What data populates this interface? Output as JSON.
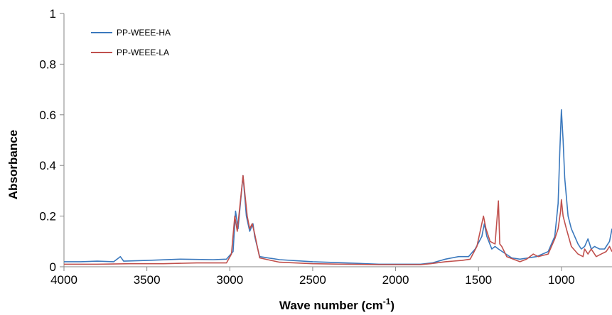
{
  "chart_data": {
    "type": "line",
    "xlabel": "Wave number (cm",
    "xlabel_sup": "-1",
    "xlabel_suffix": ")",
    "ylabel": "Absorbance",
    "x_reversed": true,
    "xlim": [
      4000,
      695
    ],
    "ylim": [
      0,
      1
    ],
    "x_ticks": [
      4000,
      3500,
      3000,
      2500,
      2000,
      1500,
      1000
    ],
    "y_ticks": [
      {
        "value": 0,
        "label": "0"
      },
      {
        "value": 0.2,
        "label": "0.2"
      },
      {
        "value": 0.4,
        "label": "0.4"
      },
      {
        "value": 0.6,
        "label": "0.6"
      },
      {
        "value": 0.8,
        "label": "0.8"
      },
      {
        "value": 1,
        "label": "1"
      }
    ],
    "grid": false,
    "legend_position": "top-left",
    "series": [
      {
        "name": "PP-WEEE-HA",
        "color": "#3a78bd",
        "points": [
          [
            4000,
            0.02
          ],
          [
            3900,
            0.02
          ],
          [
            3800,
            0.022
          ],
          [
            3700,
            0.02
          ],
          [
            3660,
            0.04
          ],
          [
            3640,
            0.022
          ],
          [
            3500,
            0.025
          ],
          [
            3300,
            0.03
          ],
          [
            3100,
            0.028
          ],
          [
            3020,
            0.03
          ],
          [
            2980,
            0.06
          ],
          [
            2965,
            0.22
          ],
          [
            2950,
            0.15
          ],
          [
            2920,
            0.36
          ],
          [
            2900,
            0.2
          ],
          [
            2880,
            0.14
          ],
          [
            2860,
            0.17
          ],
          [
            2850,
            0.12
          ],
          [
            2820,
            0.04
          ],
          [
            2700,
            0.028
          ],
          [
            2500,
            0.02
          ],
          [
            2300,
            0.015
          ],
          [
            2100,
            0.01
          ],
          [
            1850,
            0.01
          ],
          [
            1780,
            0.015
          ],
          [
            1700,
            0.03
          ],
          [
            1620,
            0.04
          ],
          [
            1560,
            0.04
          ],
          [
            1520,
            0.07
          ],
          [
            1480,
            0.12
          ],
          [
            1465,
            0.17
          ],
          [
            1450,
            0.12
          ],
          [
            1420,
            0.07
          ],
          [
            1400,
            0.08
          ],
          [
            1380,
            0.07
          ],
          [
            1300,
            0.035
          ],
          [
            1250,
            0.03
          ],
          [
            1200,
            0.035
          ],
          [
            1150,
            0.04
          ],
          [
            1080,
            0.06
          ],
          [
            1040,
            0.12
          ],
          [
            1020,
            0.25
          ],
          [
            1010,
            0.45
          ],
          [
            1000,
            0.62
          ],
          [
            990,
            0.5
          ],
          [
            980,
            0.35
          ],
          [
            960,
            0.2
          ],
          [
            940,
            0.15
          ],
          [
            900,
            0.09
          ],
          [
            880,
            0.07
          ],
          [
            860,
            0.08
          ],
          [
            840,
            0.11
          ],
          [
            820,
            0.07
          ],
          [
            800,
            0.08
          ],
          [
            770,
            0.07
          ],
          [
            740,
            0.07
          ],
          [
            710,
            0.1
          ],
          [
            695,
            0.15
          ]
        ]
      },
      {
        "name": "PP-WEEE-LA",
        "color": "#c0504d",
        "points": [
          [
            4000,
            0.01
          ],
          [
            3800,
            0.01
          ],
          [
            3600,
            0.012
          ],
          [
            3400,
            0.012
          ],
          [
            3200,
            0.015
          ],
          [
            3020,
            0.015
          ],
          [
            2990,
            0.05
          ],
          [
            2970,
            0.2
          ],
          [
            2955,
            0.14
          ],
          [
            2920,
            0.36
          ],
          [
            2895,
            0.2
          ],
          [
            2880,
            0.15
          ],
          [
            2865,
            0.17
          ],
          [
            2850,
            0.13
          ],
          [
            2820,
            0.035
          ],
          [
            2700,
            0.018
          ],
          [
            2500,
            0.012
          ],
          [
            2300,
            0.01
          ],
          [
            2100,
            0.008
          ],
          [
            1850,
            0.008
          ],
          [
            1790,
            0.012
          ],
          [
            1700,
            0.02
          ],
          [
            1600,
            0.025
          ],
          [
            1550,
            0.03
          ],
          [
            1510,
            0.08
          ],
          [
            1470,
            0.2
          ],
          [
            1455,
            0.15
          ],
          [
            1430,
            0.1
          ],
          [
            1400,
            0.09
          ],
          [
            1380,
            0.26
          ],
          [
            1372,
            0.09
          ],
          [
            1360,
            0.08
          ],
          [
            1330,
            0.04
          ],
          [
            1250,
            0.02
          ],
          [
            1210,
            0.03
          ],
          [
            1170,
            0.05
          ],
          [
            1140,
            0.04
          ],
          [
            1080,
            0.05
          ],
          [
            1040,
            0.11
          ],
          [
            1020,
            0.15
          ],
          [
            1005,
            0.22
          ],
          [
            1000,
            0.265
          ],
          [
            990,
            0.2
          ],
          [
            970,
            0.15
          ],
          [
            940,
            0.08
          ],
          [
            900,
            0.05
          ],
          [
            870,
            0.04
          ],
          [
            860,
            0.07
          ],
          [
            840,
            0.05
          ],
          [
            820,
            0.07
          ],
          [
            790,
            0.04
          ],
          [
            760,
            0.05
          ],
          [
            730,
            0.06
          ],
          [
            710,
            0.08
          ],
          [
            695,
            0.06
          ]
        ]
      }
    ]
  }
}
